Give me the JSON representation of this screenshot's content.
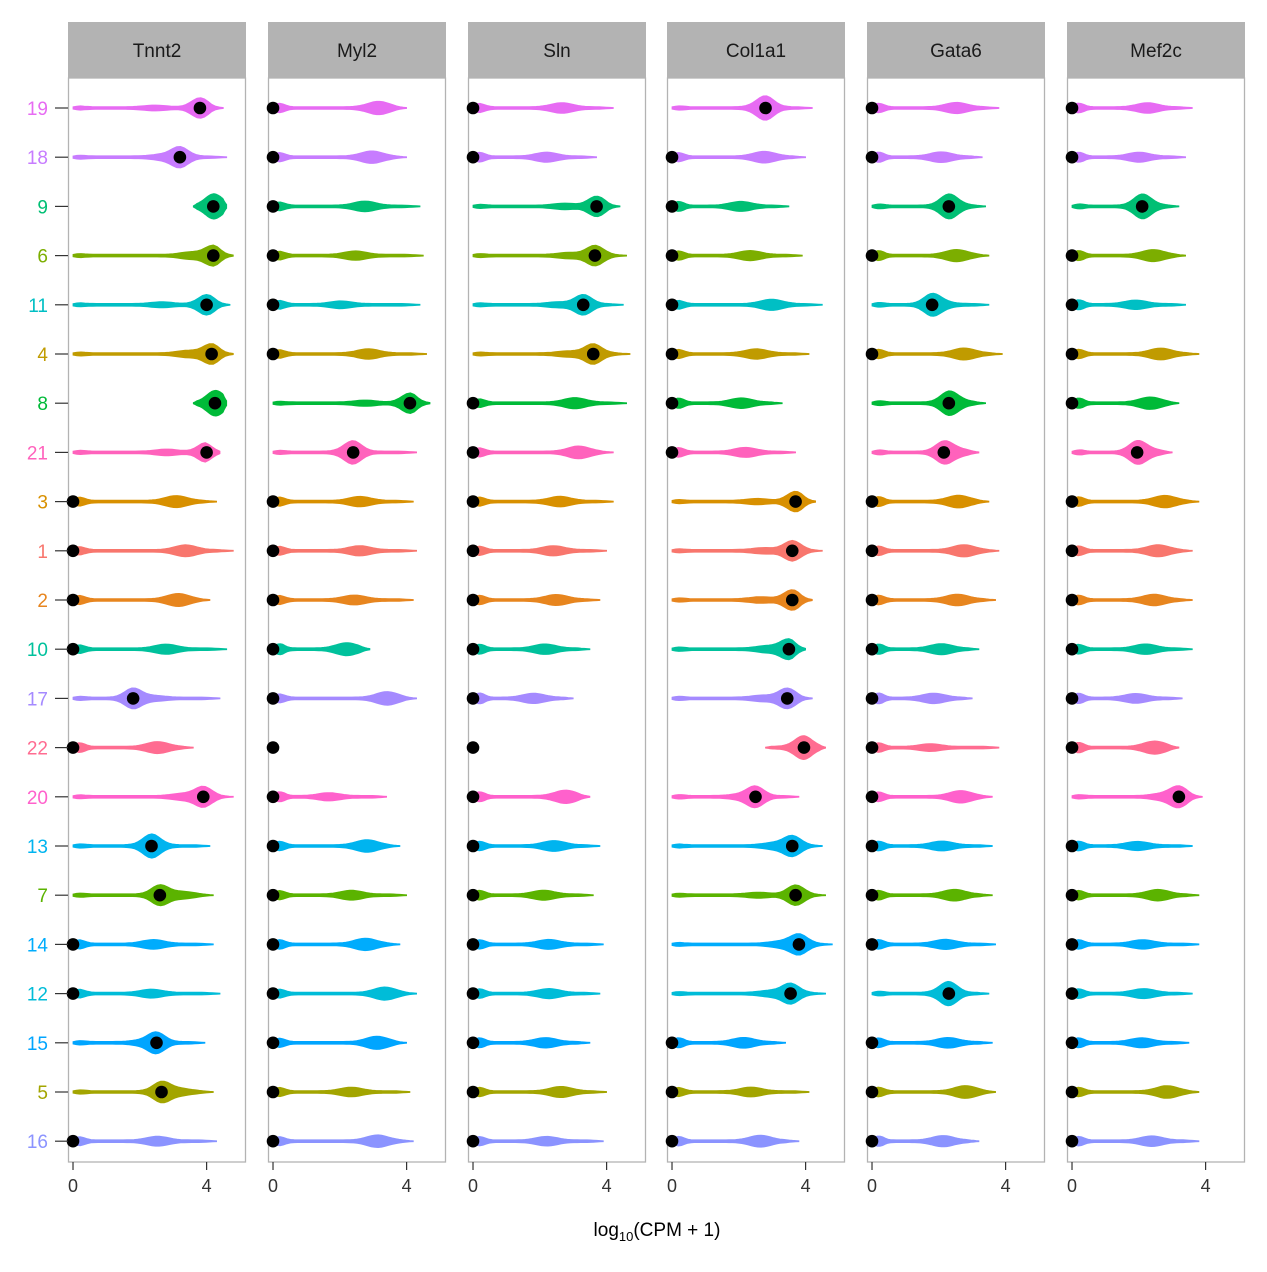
{
  "chart_data": {
    "type": "violin",
    "title": "",
    "xlabel_main": "log",
    "xlabel_sub": "10",
    "xlabel_rest": "(CPM + 1)",
    "x_ticks": [
      "0",
      "4"
    ],
    "xlim": [
      -0.15,
      5.1
    ],
    "facets": [
      "Tnnt2",
      "Myl2",
      "Sln",
      "Col1a1",
      "Gata6",
      "Mef2c"
    ],
    "clusters": [
      "19",
      "18",
      "9",
      "6",
      "11",
      "4",
      "8",
      "21",
      "3",
      "1",
      "2",
      "10",
      "17",
      "22",
      "20",
      "13",
      "7",
      "14",
      "12",
      "15",
      "5",
      "16"
    ],
    "cluster_colors": {
      "1": "#F8766D",
      "2": "#E7851E",
      "3": "#D89000",
      "4": "#C09B00",
      "5": "#A3A500",
      "6": "#7CAE00",
      "7": "#5BB300",
      "8": "#00BA38",
      "9": "#00BF74",
      "10": "#00C19C",
      "11": "#00BFC4",
      "12": "#00BCD8",
      "13": "#00B4EF",
      "14": "#00ACFC",
      "15": "#00A5FF",
      "16": "#8B93FF",
      "17": "#A58AFF",
      "18": "#C77CFF",
      "19": "#E76BF3",
      "20": "#FF61CC",
      "21": "#FF62BC",
      "22": "#FF6C91"
    },
    "median_dot_color": "#000000",
    "violins": {
      "Tnnt2": {
        "19": {
          "min": 0.0,
          "max": 4.5,
          "median": 3.8
        },
        "18": {
          "min": 0.0,
          "max": 4.6,
          "median": 3.2
        },
        "9": {
          "min": 3.6,
          "max": 4.6,
          "median": 4.2
        },
        "6": {
          "min": 0.0,
          "max": 4.8,
          "median": 4.2
        },
        "11": {
          "min": 0.0,
          "max": 4.7,
          "median": 4.0
        },
        "4": {
          "min": 0.0,
          "max": 4.8,
          "median": 4.15
        },
        "8": {
          "min": 3.6,
          "max": 4.6,
          "median": 4.25
        },
        "21": {
          "min": 0.0,
          "max": 4.4,
          "median": 4.0
        },
        "3": {
          "min": 0.0,
          "max": 4.3,
          "median": 0.0
        },
        "1": {
          "min": 0.0,
          "max": 4.8,
          "median": 0.0
        },
        "2": {
          "min": 0.0,
          "max": 4.1,
          "median": 0.0
        },
        "10": {
          "min": 0.0,
          "max": 4.6,
          "median": 0.0
        },
        "17": {
          "min": 0.0,
          "max": 4.4,
          "median": 1.8
        },
        "22": {
          "min": 0.0,
          "max": 3.6,
          "median": 0.0
        },
        "20": {
          "min": 0.0,
          "max": 4.8,
          "median": 3.9
        },
        "13": {
          "min": 0.0,
          "max": 4.1,
          "median": 2.35
        },
        "7": {
          "min": 0.0,
          "max": 4.2,
          "median": 2.6
        },
        "14": {
          "min": 0.0,
          "max": 4.2,
          "median": 0.0
        },
        "12": {
          "min": 0.0,
          "max": 4.4,
          "median": 0.0
        },
        "15": {
          "min": 0.0,
          "max": 3.95,
          "median": 2.5
        },
        "5": {
          "min": 0.0,
          "max": 4.2,
          "median": 2.65
        },
        "16": {
          "min": 0.0,
          "max": 4.3,
          "median": 0.0
        }
      },
      "Myl2": {
        "19": {
          "min": 0.0,
          "max": 4.0,
          "median": 0.0
        },
        "18": {
          "min": 0.0,
          "max": 4.0,
          "median": 0.0
        },
        "9": {
          "min": 0.0,
          "max": 4.4,
          "median": 0.0
        },
        "6": {
          "min": 0.0,
          "max": 4.5,
          "median": 0.0
        },
        "11": {
          "min": 0.0,
          "max": 4.4,
          "median": 0.0
        },
        "4": {
          "min": 0.0,
          "max": 4.6,
          "median": 0.0
        },
        "8": {
          "min": 0.0,
          "max": 4.7,
          "median": 4.1
        },
        "21": {
          "min": 0.0,
          "max": 4.3,
          "median": 2.4
        },
        "3": {
          "min": 0.0,
          "max": 4.2,
          "median": 0.0
        },
        "1": {
          "min": 0.0,
          "max": 4.3,
          "median": 0.0
        },
        "2": {
          "min": 0.0,
          "max": 4.2,
          "median": 0.0
        },
        "10": {
          "min": 0.0,
          "max": 2.9,
          "median": 0.0
        },
        "17": {
          "min": 0.0,
          "max": 4.3,
          "median": 0.0
        },
        "22": {
          "min": 0.0,
          "max": 0.0,
          "median": 0.0
        },
        "20": {
          "min": 0.0,
          "max": 3.4,
          "median": 0.0
        },
        "13": {
          "min": 0.0,
          "max": 3.8,
          "median": 0.0
        },
        "7": {
          "min": 0.0,
          "max": 4.0,
          "median": 0.0
        },
        "14": {
          "min": 0.0,
          "max": 3.8,
          "median": 0.0
        },
        "12": {
          "min": 0.0,
          "max": 4.3,
          "median": 0.0
        },
        "15": {
          "min": 0.0,
          "max": 4.0,
          "median": 0.0
        },
        "5": {
          "min": 0.0,
          "max": 4.1,
          "median": 0.0
        },
        "16": {
          "min": 0.0,
          "max": 4.2,
          "median": 0.0
        }
      },
      "Sln": {
        "19": {
          "min": 0.0,
          "max": 4.2,
          "median": 0.0
        },
        "18": {
          "min": 0.0,
          "max": 3.7,
          "median": 0.0
        },
        "9": {
          "min": 0.0,
          "max": 4.4,
          "median": 3.7
        },
        "6": {
          "min": 0.0,
          "max": 4.6,
          "median": 3.65
        },
        "11": {
          "min": 0.0,
          "max": 4.5,
          "median": 3.3
        },
        "4": {
          "min": 0.0,
          "max": 4.7,
          "median": 3.6
        },
        "8": {
          "min": 0.0,
          "max": 4.6,
          "median": 0.0
        },
        "21": {
          "min": 0.0,
          "max": 4.2,
          "median": 0.0
        },
        "3": {
          "min": 0.0,
          "max": 4.2,
          "median": 0.0
        },
        "1": {
          "min": 0.0,
          "max": 4.0,
          "median": 0.0
        },
        "2": {
          "min": 0.0,
          "max": 3.8,
          "median": 0.0
        },
        "10": {
          "min": 0.0,
          "max": 3.5,
          "median": 0.0
        },
        "17": {
          "min": 0.0,
          "max": 3.0,
          "median": 0.0
        },
        "22": {
          "min": 0.0,
          "max": 0.0,
          "median": 0.0
        },
        "20": {
          "min": 0.0,
          "max": 3.5,
          "median": 0.0
        },
        "13": {
          "min": 0.0,
          "max": 3.8,
          "median": 0.0
        },
        "7": {
          "min": 0.0,
          "max": 3.6,
          "median": 0.0
        },
        "14": {
          "min": 0.0,
          "max": 3.9,
          "median": 0.0
        },
        "12": {
          "min": 0.0,
          "max": 3.8,
          "median": 0.0
        },
        "15": {
          "min": 0.0,
          "max": 3.5,
          "median": 0.0
        },
        "5": {
          "min": 0.0,
          "max": 4.0,
          "median": 0.0
        },
        "16": {
          "min": 0.0,
          "max": 3.9,
          "median": 0.0
        }
      },
      "Col1a1": {
        "19": {
          "min": 0.0,
          "max": 4.2,
          "median": 2.8
        },
        "18": {
          "min": 0.0,
          "max": 4.0,
          "median": 0.0
        },
        "9": {
          "min": 0.0,
          "max": 3.5,
          "median": 0.0
        },
        "6": {
          "min": 0.0,
          "max": 3.9,
          "median": 0.0
        },
        "11": {
          "min": 0.0,
          "max": 4.5,
          "median": 0.0
        },
        "4": {
          "min": 0.0,
          "max": 4.1,
          "median": 0.0
        },
        "8": {
          "min": 0.0,
          "max": 3.3,
          "median": 0.0
        },
        "21": {
          "min": 0.0,
          "max": 3.7,
          "median": 0.0
        },
        "3": {
          "min": 0.0,
          "max": 4.3,
          "median": 3.7
        },
        "1": {
          "min": 0.0,
          "max": 4.5,
          "median": 3.6
        },
        "2": {
          "min": 0.0,
          "max": 4.2,
          "median": 3.6
        },
        "10": {
          "min": 0.0,
          "max": 4.0,
          "median": 3.5
        },
        "17": {
          "min": 0.0,
          "max": 4.2,
          "median": 3.45
        },
        "22": {
          "min": 2.8,
          "max": 4.6,
          "median": 3.95
        },
        "20": {
          "min": 0.0,
          "max": 3.8,
          "median": 2.5
        },
        "13": {
          "min": 0.0,
          "max": 4.5,
          "median": 3.6
        },
        "7": {
          "min": 0.0,
          "max": 4.6,
          "median": 3.7
        },
        "14": {
          "min": 0.0,
          "max": 4.8,
          "median": 3.8
        },
        "12": {
          "min": 0.0,
          "max": 4.6,
          "median": 3.55
        },
        "15": {
          "min": 0.0,
          "max": 3.4,
          "median": 0.0
        },
        "5": {
          "min": 0.0,
          "max": 4.1,
          "median": 0.0
        },
        "16": {
          "min": 0.0,
          "max": 3.8,
          "median": 0.0
        }
      },
      "Gata6": {
        "19": {
          "min": 0.0,
          "max": 3.8,
          "median": 0.0
        },
        "18": {
          "min": 0.0,
          "max": 3.3,
          "median": 0.0
        },
        "9": {
          "min": 0.0,
          "max": 3.4,
          "median": 2.3
        },
        "6": {
          "min": 0.0,
          "max": 3.5,
          "median": 0.0
        },
        "11": {
          "min": 0.0,
          "max": 3.5,
          "median": 1.8
        },
        "4": {
          "min": 0.0,
          "max": 3.9,
          "median": 0.0
        },
        "8": {
          "min": 0.0,
          "max": 3.4,
          "median": 2.3
        },
        "21": {
          "min": 0.0,
          "max": 3.2,
          "median": 2.15
        },
        "3": {
          "min": 0.0,
          "max": 3.5,
          "median": 0.0
        },
        "1": {
          "min": 0.0,
          "max": 3.8,
          "median": 0.0
        },
        "2": {
          "min": 0.0,
          "max": 3.7,
          "median": 0.0
        },
        "10": {
          "min": 0.0,
          "max": 3.2,
          "median": 0.0
        },
        "17": {
          "min": 0.0,
          "max": 3.0,
          "median": 0.0
        },
        "22": {
          "min": 0.0,
          "max": 3.8,
          "median": 0.0
        },
        "20": {
          "min": 0.0,
          "max": 3.6,
          "median": 0.0
        },
        "13": {
          "min": 0.0,
          "max": 3.6,
          "median": 0.0
        },
        "7": {
          "min": 0.0,
          "max": 3.6,
          "median": 0.0
        },
        "14": {
          "min": 0.0,
          "max": 3.7,
          "median": 0.0
        },
        "12": {
          "min": 0.0,
          "max": 3.5,
          "median": 2.3
        },
        "15": {
          "min": 0.0,
          "max": 3.6,
          "median": 0.0
        },
        "5": {
          "min": 0.0,
          "max": 3.7,
          "median": 0.0
        },
        "16": {
          "min": 0.0,
          "max": 3.2,
          "median": 0.0
        }
      },
      "Mef2c": {
        "19": {
          "min": 0.0,
          "max": 3.6,
          "median": 0.0
        },
        "18": {
          "min": 0.0,
          "max": 3.4,
          "median": 0.0
        },
        "9": {
          "min": 0.0,
          "max": 3.2,
          "median": 2.1
        },
        "6": {
          "min": 0.0,
          "max": 3.4,
          "median": 0.0
        },
        "11": {
          "min": 0.0,
          "max": 3.4,
          "median": 0.0
        },
        "4": {
          "min": 0.0,
          "max": 3.8,
          "median": 0.0
        },
        "8": {
          "min": 0.0,
          "max": 3.2,
          "median": 0.0
        },
        "21": {
          "min": 0.0,
          "max": 3.0,
          "median": 1.95
        },
        "3": {
          "min": 0.0,
          "max": 3.8,
          "median": 0.0
        },
        "1": {
          "min": 0.0,
          "max": 3.6,
          "median": 0.0
        },
        "2": {
          "min": 0.0,
          "max": 3.6,
          "median": 0.0
        },
        "10": {
          "min": 0.0,
          "max": 3.6,
          "median": 0.0
        },
        "17": {
          "min": 0.0,
          "max": 3.3,
          "median": 0.0
        },
        "22": {
          "min": 0.0,
          "max": 3.2,
          "median": 0.0
        },
        "20": {
          "min": 0.0,
          "max": 3.9,
          "median": 3.2
        },
        "13": {
          "min": 0.0,
          "max": 3.6,
          "median": 0.0
        },
        "7": {
          "min": 0.0,
          "max": 3.8,
          "median": 0.0
        },
        "14": {
          "min": 0.0,
          "max": 3.8,
          "median": 0.0
        },
        "12": {
          "min": 0.0,
          "max": 3.6,
          "median": 0.0
        },
        "15": {
          "min": 0.0,
          "max": 3.5,
          "median": 0.0
        },
        "5": {
          "min": 0.0,
          "max": 3.8,
          "median": 0.0
        },
        "16": {
          "min": 0.0,
          "max": 3.8,
          "median": 0.0
        }
      }
    }
  }
}
